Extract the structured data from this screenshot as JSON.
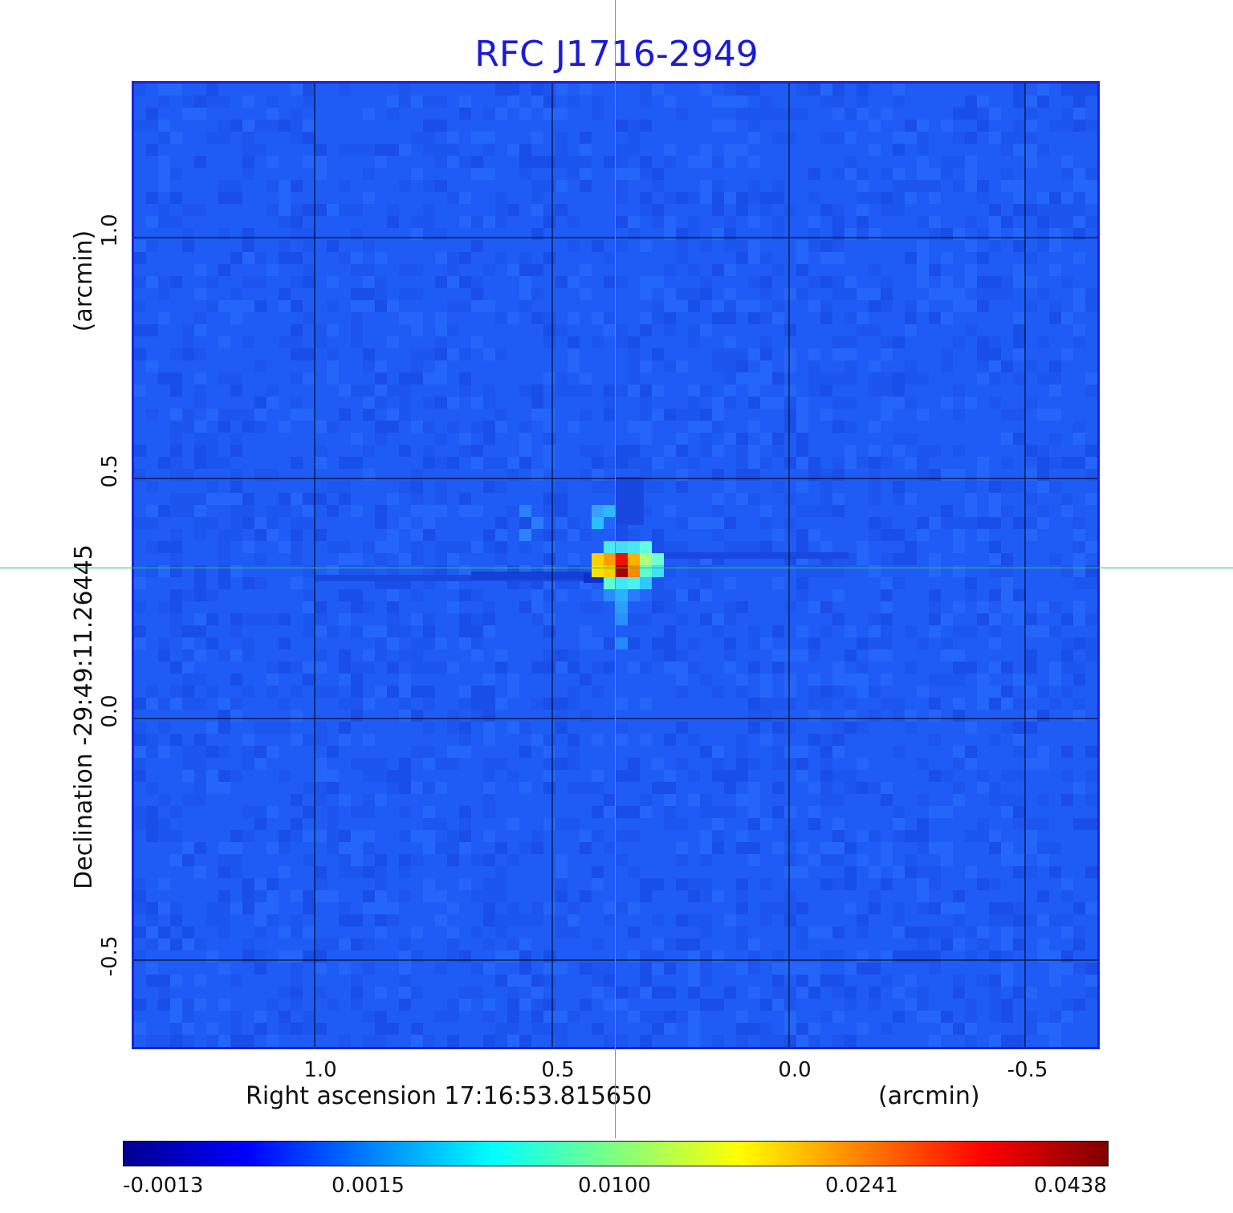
{
  "title": "RFC J1716-2949",
  "axes": {
    "y_main": "Declination  -29:49:11.26445",
    "y_unit": "(arcmin)",
    "x_main": "Right ascension  17:16:53.815650",
    "x_unit": "(arcmin)",
    "y_ticks": [
      "1.0",
      "0.5",
      "0.0",
      "-0.5"
    ],
    "x_ticks": [
      "1.0",
      "0.5",
      "0.0",
      "-0.5"
    ]
  },
  "colorbar": {
    "labels": [
      "-0.0013",
      "0.0015",
      "0.0100",
      "0.0241",
      "0.0438"
    ],
    "colormap": [
      "#00008f",
      "#0000ff",
      "#0080ff",
      "#00ffff",
      "#80ff80",
      "#ffff00",
      "#ff8000",
      "#ff0000",
      "#800000"
    ]
  },
  "colors": {
    "background_map": "#1f5cf5",
    "frame": "#1a23d8",
    "title": "#1a1ad6",
    "crosshair": "#22cc44",
    "grid": "#000000"
  },
  "source": {
    "peak_value": 0.0438,
    "ra_offset_arcmin": 0.36,
    "dec_offset_arcmin": 0.31
  }
}
